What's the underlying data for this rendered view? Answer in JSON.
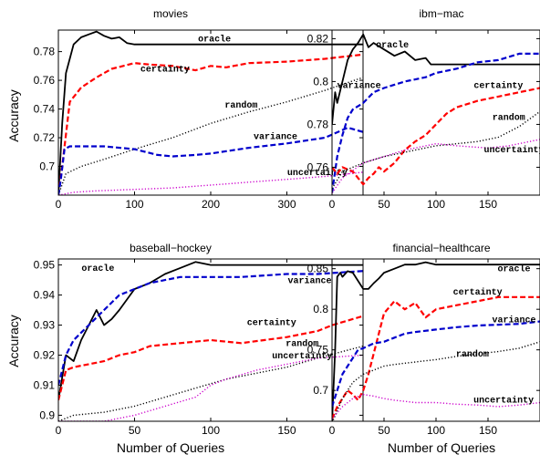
{
  "chart_data": [
    {
      "type": "line",
      "title": "movies",
      "xlabel": "",
      "ylabel": "Accuracy",
      "xlim": [
        0,
        400
      ],
      "ylim": [
        0.68,
        0.795
      ],
      "xticks": [
        0,
        100,
        200,
        300
      ],
      "yticks": [
        0.7,
        0.72,
        0.74,
        0.76,
        0.78
      ],
      "ytick_labels": [
        "0.7",
        "0.72",
        "0.74",
        "0.76",
        "0.78"
      ],
      "series": [
        {
          "name": "oracle",
          "color": "#000000",
          "dash": "solid",
          "x": [
            0,
            5,
            10,
            15,
            20,
            30,
            40,
            50,
            60,
            70,
            80,
            90,
            100,
            150,
            200,
            300,
            400
          ],
          "y": [
            0.68,
            0.73,
            0.765,
            0.775,
            0.785,
            0.79,
            0.792,
            0.794,
            0.791,
            0.789,
            0.79,
            0.786,
            0.785,
            0.785,
            0.785,
            0.785,
            0.785
          ],
          "label": {
            "x": 205,
            "y": 0.787
          }
        },
        {
          "name": "certainty",
          "color": "#ff0000",
          "dash": "dashed",
          "x": [
            0,
            5,
            15,
            30,
            50,
            70,
            100,
            120,
            150,
            180,
            200,
            220,
            250,
            300,
            350,
            400
          ],
          "y": [
            0.68,
            0.7,
            0.745,
            0.755,
            0.762,
            0.768,
            0.772,
            0.771,
            0.77,
            0.767,
            0.77,
            0.769,
            0.772,
            0.773,
            0.775,
            0.778
          ],
          "label": {
            "x": 140,
            "y": 0.766
          }
        },
        {
          "name": "random",
          "color": "#000000",
          "dash": "dotted",
          "x": [
            0,
            10,
            30,
            60,
            100,
            150,
            200,
            250,
            300,
            350,
            400
          ],
          "y": [
            0.68,
            0.695,
            0.7,
            0.705,
            0.712,
            0.72,
            0.73,
            0.738,
            0.745,
            0.753,
            0.762
          ],
          "label": {
            "x": 240,
            "y": 0.741
          }
        },
        {
          "name": "variance",
          "color": "#0000cc",
          "dash": "dashed",
          "x": [
            0,
            3,
            8,
            15,
            30,
            60,
            100,
            130,
            150,
            180,
            200,
            250,
            300,
            350,
            380,
            400
          ],
          "y": [
            0.68,
            0.69,
            0.712,
            0.714,
            0.714,
            0.714,
            0.712,
            0.708,
            0.707,
            0.708,
            0.709,
            0.713,
            0.716,
            0.72,
            0.727,
            0.724
          ],
          "label": {
            "x": 285,
            "y": 0.719
          }
        },
        {
          "name": "uncertainty",
          "color": "#cc00cc",
          "dash": "dotted",
          "x": [
            0,
            20,
            50,
            100,
            150,
            200,
            250,
            300,
            350,
            400
          ],
          "y": [
            0.68,
            0.682,
            0.683,
            0.684,
            0.685,
            0.687,
            0.689,
            0.691,
            0.693,
            0.696
          ],
          "label": {
            "x": 340,
            "y": 0.694
          }
        }
      ]
    },
    {
      "type": "line",
      "title": "ibm−mac",
      "xlabel": "",
      "ylabel": "",
      "xlim": [
        0,
        200
      ],
      "ylim": [
        0.747,
        0.824
      ],
      "xticks": [
        0,
        50,
        100,
        150
      ],
      "yticks": [
        0.76,
        0.78,
        0.8,
        0.82
      ],
      "ytick_labels": [
        "0.76",
        "0.78",
        "0.8",
        "0.82"
      ],
      "series": [
        {
          "name": "oracle",
          "color": "#000000",
          "dash": "solid",
          "x": [
            0,
            3,
            5,
            10,
            15,
            20,
            25,
            30,
            35,
            40,
            50,
            60,
            70,
            80,
            90,
            95,
            100,
            150,
            200
          ],
          "y": [
            0.78,
            0.795,
            0.79,
            0.8,
            0.81,
            0.815,
            0.818,
            0.822,
            0.816,
            0.818,
            0.815,
            0.812,
            0.814,
            0.81,
            0.811,
            0.808,
            0.808,
            0.808,
            0.808
          ],
          "label": {
            "x": 58,
            "y": 0.816
          }
        },
        {
          "name": "variance",
          "color": "#0000cc",
          "dash": "dashed",
          "x": [
            0,
            5,
            10,
            15,
            20,
            30,
            40,
            50,
            70,
            90,
            100,
            110,
            120,
            140,
            160,
            180,
            200
          ],
          "y": [
            0.748,
            0.765,
            0.775,
            0.783,
            0.787,
            0.79,
            0.795,
            0.797,
            0.8,
            0.802,
            0.804,
            0.805,
            0.806,
            0.809,
            0.81,
            0.813,
            0.813
          ],
          "label": {
            "x": 26,
            "y": 0.797
          }
        },
        {
          "name": "certainty",
          "color": "#ff0000",
          "dash": "dashed",
          "x": [
            0,
            5,
            10,
            20,
            25,
            30,
            35,
            40,
            45,
            50,
            60,
            70,
            80,
            90,
            100,
            110,
            120,
            140,
            160,
            180,
            200
          ],
          "y": [
            0.76,
            0.757,
            0.76,
            0.758,
            0.755,
            0.752,
            0.755,
            0.757,
            0.76,
            0.758,
            0.762,
            0.768,
            0.772,
            0.775,
            0.78,
            0.785,
            0.788,
            0.791,
            0.793,
            0.795,
            0.797
          ],
          "label": {
            "x": 160,
            "y": 0.797
          }
        },
        {
          "name": "random",
          "color": "#000000",
          "dash": "dotted",
          "x": [
            0,
            10,
            30,
            50,
            80,
            100,
            120,
            140,
            160,
            180,
            200
          ],
          "y": [
            0.75,
            0.758,
            0.762,
            0.765,
            0.768,
            0.77,
            0.771,
            0.772,
            0.774,
            0.779,
            0.786
          ],
          "label": {
            "x": 170,
            "y": 0.782
          }
        },
        {
          "name": "uncertainty",
          "color": "#cc00cc",
          "dash": "dotted",
          "x": [
            0,
            10,
            30,
            50,
            70,
            100,
            120,
            150,
            170,
            200
          ],
          "y": [
            0.748,
            0.755,
            0.762,
            0.765,
            0.768,
            0.771,
            0.77,
            0.769,
            0.77,
            0.773
          ],
          "label": {
            "x": 175,
            "y": 0.767
          }
        }
      ]
    },
    {
      "type": "line",
      "title": "baseball−hockey",
      "xlabel": "Number of Queries",
      "ylabel": "Accuracy",
      "xlim": [
        0,
        200
      ],
      "ylim": [
        0.898,
        0.952
      ],
      "xticks": [
        0,
        50,
        100,
        150
      ],
      "yticks": [
        0.9,
        0.91,
        0.92,
        0.93,
        0.94,
        0.95
      ],
      "ytick_labels": [
        "0.9",
        "0.91",
        "0.92",
        "0.93",
        "0.94",
        "0.95"
      ],
      "series": [
        {
          "name": "oracle",
          "color": "#000000",
          "dash": "solid",
          "x": [
            0,
            5,
            10,
            15,
            20,
            25,
            30,
            35,
            40,
            50,
            60,
            70,
            80,
            90,
            100,
            150,
            200
          ],
          "y": [
            0.905,
            0.92,
            0.918,
            0.925,
            0.93,
            0.935,
            0.93,
            0.932,
            0.935,
            0.942,
            0.944,
            0.947,
            0.949,
            0.951,
            0.95,
            0.95,
            0.95
          ],
          "label": {
            "x": 26,
            "y": 0.948
          }
        },
        {
          "name": "variance",
          "color": "#0000cc",
          "dash": "dashed",
          "x": [
            0,
            5,
            10,
            20,
            30,
            40,
            50,
            60,
            80,
            100,
            120,
            150,
            170,
            200
          ],
          "y": [
            0.91,
            0.92,
            0.925,
            0.93,
            0.935,
            0.94,
            0.942,
            0.944,
            0.946,
            0.946,
            0.946,
            0.947,
            0.947,
            0.948
          ],
          "label": {
            "x": 165,
            "y": 0.944
          }
        },
        {
          "name": "certainty",
          "color": "#ff0000",
          "dash": "dashed",
          "x": [
            0,
            5,
            10,
            20,
            30,
            40,
            50,
            60,
            80,
            100,
            120,
            150,
            170,
            180,
            200
          ],
          "y": [
            0.905,
            0.915,
            0.916,
            0.917,
            0.918,
            0.92,
            0.921,
            0.923,
            0.924,
            0.925,
            0.924,
            0.926,
            0.928,
            0.93,
            0.933
          ],
          "label": {
            "x": 140,
            "y": 0.93
          }
        },
        {
          "name": "random",
          "color": "#000000",
          "dash": "dotted",
          "x": [
            0,
            10,
            30,
            50,
            70,
            90,
            110,
            130,
            150,
            170,
            200
          ],
          "y": [
            0.898,
            0.9,
            0.901,
            0.903,
            0.906,
            0.909,
            0.912,
            0.914,
            0.916,
            0.919,
            0.923
          ],
          "label": {
            "x": 160,
            "y": 0.923
          }
        },
        {
          "name": "uncertainty",
          "color": "#cc00cc",
          "dash": "dotted",
          "x": [
            0,
            30,
            50,
            70,
            90,
            100,
            110,
            130,
            150,
            170,
            200
          ],
          "y": [
            0.898,
            0.898,
            0.9,
            0.903,
            0.906,
            0.91,
            0.912,
            0.915,
            0.917,
            0.919,
            0.92
          ],
          "label": {
            "x": 160,
            "y": 0.919
          }
        }
      ]
    },
    {
      "type": "line",
      "title": "financial−healthcare",
      "xlabel": "Number of Queries",
      "ylabel": "",
      "xlim": [
        0,
        200
      ],
      "ylim": [
        0.662,
        0.862
      ],
      "xticks": [
        0,
        50,
        100,
        150
      ],
      "yticks": [
        0.7,
        0.75,
        0.8,
        0.85
      ],
      "ytick_labels": [
        "0.7",
        "0.75",
        "0.8",
        "0.85"
      ],
      "series": [
        {
          "name": "oracle",
          "color": "#000000",
          "dash": "solid",
          "x": [
            0,
            3,
            5,
            8,
            10,
            15,
            20,
            25,
            30,
            35,
            40,
            45,
            50,
            60,
            70,
            80,
            90,
            100,
            150,
            200
          ],
          "y": [
            0.66,
            0.75,
            0.84,
            0.845,
            0.84,
            0.847,
            0.845,
            0.835,
            0.825,
            0.825,
            0.832,
            0.838,
            0.845,
            0.85,
            0.855,
            0.855,
            0.858,
            0.855,
            0.855,
            0.855
          ],
          "label": {
            "x": 175,
            "y": 0.847
          }
        },
        {
          "name": "certainty",
          "color": "#ff0000",
          "dash": "dashed",
          "x": [
            0,
            5,
            10,
            15,
            20,
            25,
            30,
            35,
            40,
            45,
            50,
            60,
            70,
            80,
            90,
            100,
            120,
            140,
            160,
            200
          ],
          "y": [
            0.665,
            0.68,
            0.69,
            0.7,
            0.695,
            0.688,
            0.7,
            0.72,
            0.745,
            0.77,
            0.795,
            0.81,
            0.8,
            0.808,
            0.79,
            0.8,
            0.805,
            0.81,
            0.815,
            0.815
          ],
          "label": {
            "x": 140,
            "y": 0.818
          }
        },
        {
          "name": "variance",
          "color": "#0000cc",
          "dash": "dashed",
          "x": [
            0,
            5,
            10,
            15,
            20,
            25,
            30,
            35,
            40,
            50,
            60,
            70,
            80,
            100,
            120,
            140,
            160,
            180,
            200
          ],
          "y": [
            0.68,
            0.7,
            0.72,
            0.73,
            0.74,
            0.75,
            0.752,
            0.755,
            0.758,
            0.76,
            0.765,
            0.77,
            0.772,
            0.775,
            0.778,
            0.78,
            0.781,
            0.782,
            0.785
          ],
          "label": {
            "x": 175,
            "y": 0.784
          }
        },
        {
          "name": "random",
          "color": "#000000",
          "dash": "dotted",
          "x": [
            0,
            10,
            20,
            30,
            40,
            50,
            60,
            80,
            100,
            120,
            140,
            160,
            180,
            200
          ],
          "y": [
            0.66,
            0.69,
            0.71,
            0.72,
            0.725,
            0.73,
            0.732,
            0.735,
            0.738,
            0.742,
            0.745,
            0.748,
            0.752,
            0.76
          ],
          "label": {
            "x": 135,
            "y": 0.742
          }
        },
        {
          "name": "uncertainty",
          "color": "#cc00cc",
          "dash": "dotted",
          "x": [
            0,
            10,
            20,
            30,
            40,
            50,
            60,
            80,
            100,
            120,
            140,
            160,
            180,
            200
          ],
          "y": [
            0.665,
            0.68,
            0.69,
            0.695,
            0.693,
            0.69,
            0.688,
            0.685,
            0.685,
            0.683,
            0.682,
            0.68,
            0.682,
            0.685
          ],
          "label": {
            "x": 165,
            "y": 0.685
          }
        }
      ]
    }
  ]
}
